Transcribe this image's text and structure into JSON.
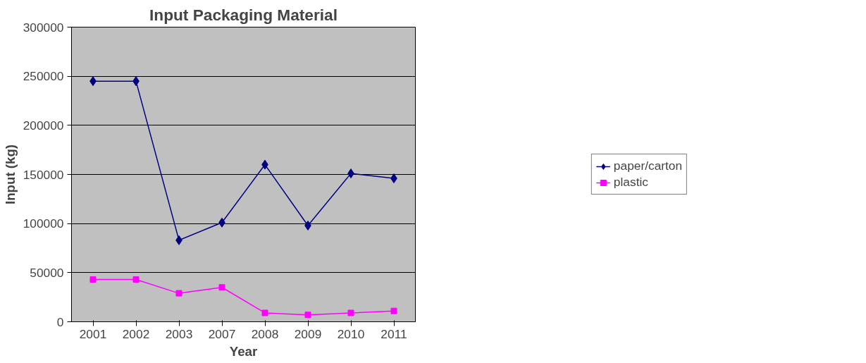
{
  "chart_data": {
    "type": "line",
    "title": "Input Packaging Material",
    "xlabel": "Year",
    "ylabel": "Input (kg)",
    "categories": [
      "2001",
      "2002",
      "2003",
      "2007",
      "2008",
      "2009",
      "2010",
      "2011"
    ],
    "series": [
      {
        "name": "paper/carton",
        "color": "#000080",
        "marker": "diamond",
        "values": [
          245000,
          245000,
          83000,
          101000,
          160000,
          98000,
          151000,
          146000
        ]
      },
      {
        "name": "plastic",
        "color": "#ff00ff",
        "marker": "square",
        "values": [
          43000,
          43000,
          29000,
          35000,
          9000,
          7000,
          9000,
          11000
        ]
      }
    ],
    "ylim": [
      0,
      300000
    ],
    "yticks": [
      0,
      50000,
      100000,
      150000,
      200000,
      250000,
      300000
    ],
    "grid": "y",
    "legend": "right",
    "line_style": "solid"
  }
}
